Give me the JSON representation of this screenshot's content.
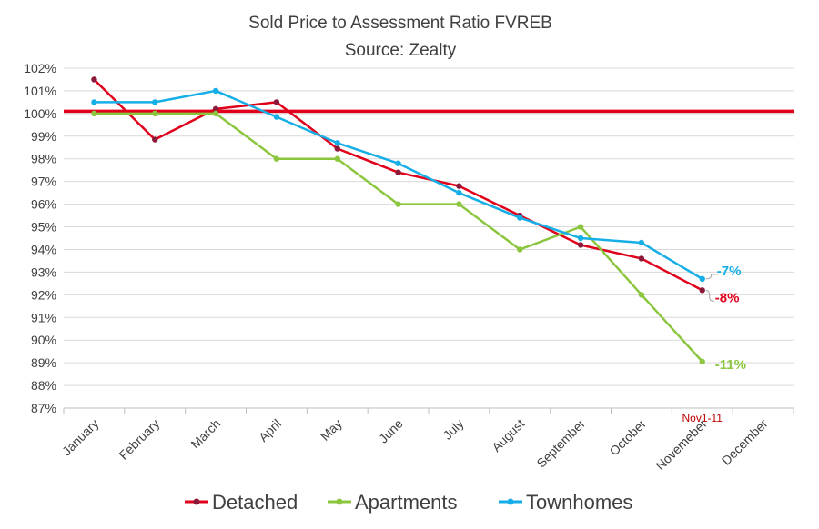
{
  "colors": {
    "detached": "#e0001b",
    "apartments": "#8cc63f",
    "townhomes": "#16aee6",
    "marker_detached": "#8b1a3a",
    "reference_line": "#e0001b",
    "grid": "#d9d9d9",
    "text": "#404040"
  },
  "chart_data": {
    "type": "line",
    "title": "Sold Price to Assessment Ratio FVREB",
    "subtitle": "Source: Zealty",
    "xlabel": "",
    "ylabel": "",
    "ylim": [
      87,
      102
    ],
    "ytick_step": 1,
    "ytick_labels": [
      "87%",
      "88%",
      "89%",
      "90%",
      "91%",
      "92%",
      "93%",
      "94%",
      "95%",
      "96%",
      "97%",
      "98%",
      "99%",
      "100%",
      "101%",
      "102%"
    ],
    "categories": [
      "January",
      "February",
      "March",
      "April",
      "May",
      "June",
      "July",
      "August",
      "September",
      "October",
      "Novemeber",
      "December"
    ],
    "grid": true,
    "reference_line": 100.1,
    "series": [
      {
        "name": "Detached",
        "key": "detached",
        "values": [
          101.5,
          98.85,
          100.2,
          100.5,
          98.45,
          97.4,
          96.8,
          95.5,
          94.2,
          93.6,
          92.2,
          null
        ]
      },
      {
        "name": "Apartments",
        "key": "apartments",
        "values": [
          100.0,
          100.0,
          100.0,
          98.0,
          98.0,
          96.0,
          96.0,
          94.0,
          95.0,
          92.0,
          89.05,
          null
        ]
      },
      {
        "name": "Townhomes",
        "key": "townhomes",
        "values": [
          100.5,
          100.5,
          101.0,
          99.85,
          98.7,
          97.8,
          96.5,
          95.4,
          94.5,
          94.3,
          92.7,
          null
        ]
      }
    ],
    "annotations": [
      {
        "text": "-7%",
        "series": "townhomes"
      },
      {
        "text": "-8%",
        "series": "detached"
      },
      {
        "text": "-11%",
        "series": "apartments"
      },
      {
        "text": "Nov1-11",
        "category": "Novemeber"
      }
    ],
    "legend": {
      "position": "bottom",
      "entries": [
        "Detached",
        "Apartments",
        "Townhomes"
      ]
    }
  }
}
